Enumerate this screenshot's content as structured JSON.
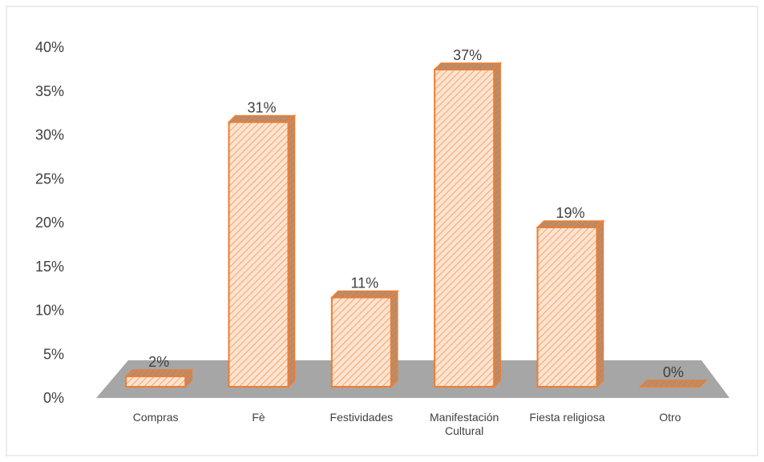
{
  "chart_data": {
    "type": "bar3d",
    "categories": [
      "Compras",
      "Fè",
      "Festividades",
      "Manifestación Cultural",
      "Fiesta religiosa",
      "Otro"
    ],
    "values": [
      2,
      31,
      11,
      37,
      19,
      0
    ],
    "value_labels": [
      "2%",
      "31%",
      "11%",
      "37%",
      "19%",
      "0%"
    ],
    "color": "#ed7d31",
    "ylim": [
      0,
      40
    ],
    "yticks": [
      {
        "value": 0,
        "label": "0%"
      },
      {
        "value": 5,
        "label": "5%"
      },
      {
        "value": 10,
        "label": "10%"
      },
      {
        "value": 15,
        "label": "15%"
      },
      {
        "value": 20,
        "label": "20%"
      },
      {
        "value": 25,
        "label": "25%"
      },
      {
        "value": 30,
        "label": "30%"
      },
      {
        "value": 35,
        "label": "35%"
      },
      {
        "value": 40,
        "label": "40%"
      }
    ],
    "grid": false
  }
}
